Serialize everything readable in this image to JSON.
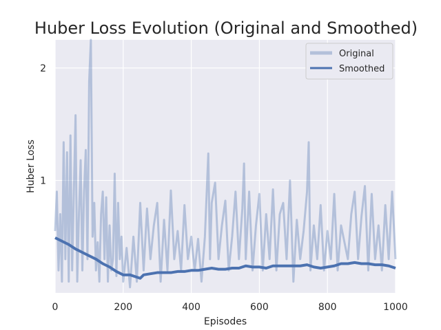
{
  "chart_data": {
    "type": "line",
    "title": "Huber Loss Evolution (Original and Smoothed)",
    "xlabel": "Episodes",
    "ylabel": "Huber Loss",
    "xlim": [
      0,
      1000
    ],
    "ylim": [
      0,
      2.25
    ],
    "xticks": [
      0,
      200,
      400,
      600,
      800,
      1000
    ],
    "yticks": [
      1,
      2
    ],
    "grid": true,
    "legend_position": "top-right",
    "series": [
      {
        "name": "Original",
        "color": "#4c72b0",
        "opacity": 0.35,
        "note_samples": "sampled peaks",
        "x": [
          0,
          5,
          10,
          15,
          20,
          25,
          30,
          35,
          40,
          45,
          50,
          55,
          60,
          65,
          70,
          75,
          80,
          85,
          90,
          95,
          100,
          105,
          110,
          115,
          120,
          125,
          130,
          135,
          140,
          145,
          150,
          155,
          160,
          165,
          170,
          175,
          180,
          185,
          190,
          195,
          200,
          210,
          220,
          230,
          240,
          250,
          260,
          270,
          280,
          290,
          300,
          310,
          320,
          330,
          340,
          350,
          360,
          370,
          380,
          390,
          400,
          410,
          420,
          430,
          440,
          450,
          455,
          460,
          470,
          480,
          490,
          500,
          510,
          520,
          530,
          540,
          550,
          555,
          560,
          570,
          580,
          590,
          600,
          610,
          620,
          630,
          640,
          650,
          660,
          670,
          680,
          690,
          700,
          710,
          720,
          730,
          740,
          745,
          750,
          760,
          770,
          780,
          790,
          800,
          810,
          820,
          830,
          840,
          850,
          860,
          870,
          880,
          890,
          900,
          910,
          920,
          930,
          940,
          950,
          960,
          970,
          980,
          990,
          1000
        ],
        "y": [
          0.55,
          0.9,
          0.2,
          0.7,
          0.1,
          1.34,
          0.3,
          1.25,
          0.1,
          1.4,
          0.2,
          0.9,
          1.58,
          0.1,
          0.7,
          1.18,
          0.2,
          0.9,
          1.27,
          0.3,
          1.88,
          2.25,
          0.5,
          0.8,
          0.2,
          0.45,
          0.1,
          0.7,
          0.9,
          0.3,
          0.85,
          0.1,
          0.6,
          0.2,
          0.3,
          1.06,
          0.15,
          0.8,
          0.3,
          0.5,
          0.1,
          0.4,
          0.05,
          0.5,
          0.1,
          0.8,
          0.2,
          0.75,
          0.3,
          0.6,
          0.8,
          0.1,
          0.65,
          0.2,
          0.91,
          0.3,
          0.55,
          0.2,
          0.78,
          0.3,
          0.5,
          0.2,
          0.48,
          0.1,
          0.5,
          1.24,
          0.3,
          0.8,
          0.98,
          0.3,
          0.6,
          0.82,
          0.2,
          0.5,
          0.9,
          0.3,
          0.75,
          1.15,
          0.3,
          0.9,
          0.2,
          0.6,
          0.88,
          0.2,
          0.7,
          0.3,
          0.92,
          0.2,
          0.7,
          0.8,
          0.3,
          1.0,
          0.1,
          0.65,
          0.3,
          0.55,
          0.9,
          1.34,
          0.2,
          0.6,
          0.3,
          0.78,
          0.2,
          0.55,
          0.3,
          0.88,
          0.2,
          0.6,
          0.45,
          0.3,
          0.7,
          0.9,
          0.3,
          0.68,
          0.95,
          0.2,
          0.88,
          0.3,
          0.6,
          0.2,
          0.78,
          0.3,
          0.9,
          0.3
        ]
      },
      {
        "name": "Smoothed",
        "color": "#4c72b0",
        "opacity": 1,
        "x": [
          0,
          20,
          40,
          60,
          80,
          100,
          120,
          140,
          160,
          180,
          200,
          220,
          240,
          250,
          260,
          280,
          300,
          320,
          340,
          360,
          380,
          400,
          420,
          440,
          460,
          480,
          500,
          520,
          540,
          560,
          580,
          600,
          620,
          640,
          660,
          680,
          700,
          720,
          740,
          760,
          780,
          800,
          820,
          840,
          860,
          880,
          900,
          920,
          940,
          960,
          980,
          1000
        ],
        "y": [
          0.49,
          0.46,
          0.43,
          0.39,
          0.36,
          0.33,
          0.3,
          0.26,
          0.23,
          0.19,
          0.16,
          0.16,
          0.14,
          0.13,
          0.16,
          0.17,
          0.18,
          0.18,
          0.18,
          0.19,
          0.19,
          0.2,
          0.2,
          0.21,
          0.22,
          0.21,
          0.21,
          0.22,
          0.22,
          0.24,
          0.23,
          0.23,
          0.22,
          0.24,
          0.24,
          0.24,
          0.24,
          0.24,
          0.25,
          0.23,
          0.22,
          0.23,
          0.24,
          0.26,
          0.26,
          0.27,
          0.26,
          0.26,
          0.25,
          0.25,
          0.24,
          0.22
        ]
      }
    ]
  }
}
